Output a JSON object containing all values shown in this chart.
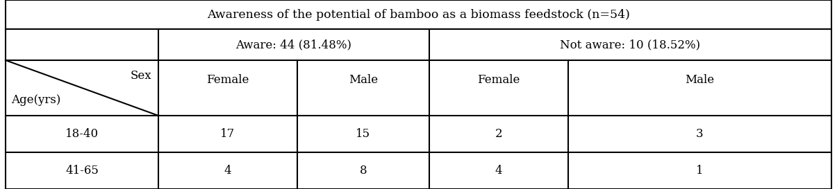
{
  "title": "Awareness of the potential of bamboo as a biomass feedstock (n=54)",
  "aware_label": "Aware: 44 (81.48%)",
  "not_aware_label": "Not aware: 10 (18.52%)",
  "sex_label": "Sex",
  "age_label": "Age(yrs)",
  "col_headers": [
    "Female",
    "Male",
    "Female",
    "Male"
  ],
  "row_labels": [
    "18-40",
    "41-65"
  ],
  "data": [
    [
      17,
      15,
      2,
      3
    ],
    [
      4,
      8,
      4,
      1
    ]
  ],
  "bg_color": "#ffffff",
  "border_color": "#000000",
  "text_color": "#000000",
  "title_fontsize": 12.5,
  "header_fontsize": 12,
  "cell_fontsize": 12
}
